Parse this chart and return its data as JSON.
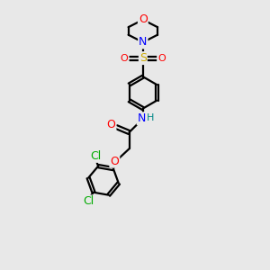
{
  "background_color": "#e8e8e8",
  "bond_color": "#000000",
  "atom_colors": {
    "O": "#ff0000",
    "N": "#0000ff",
    "S": "#ccaa00",
    "Cl": "#00aa00",
    "H": "#008888"
  },
  "figsize": [
    3.0,
    3.0
  ],
  "dpi": 100
}
